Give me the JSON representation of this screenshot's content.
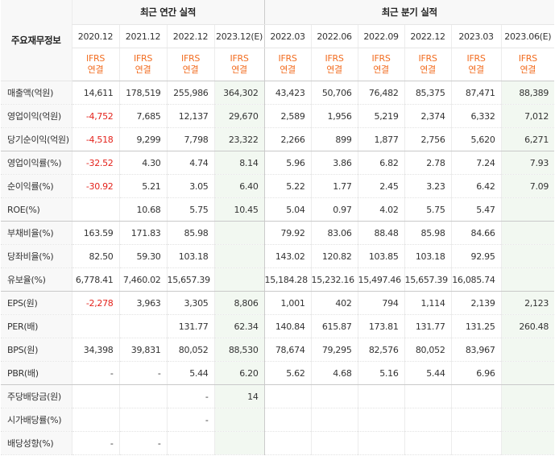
{
  "corner_label": "주요재무정보",
  "groups": {
    "annual": "최근 연간 실적",
    "quarter": "최근 분기 실적"
  },
  "columns": [
    {
      "period": "2020.12",
      "std1": "IFRS",
      "std2": "연결",
      "estimate": false
    },
    {
      "period": "2021.12",
      "std1": "IFRS",
      "std2": "연결",
      "estimate": false
    },
    {
      "period": "2022.12",
      "std1": "IFRS",
      "std2": "연결",
      "estimate": false
    },
    {
      "period": "2023.12(E)",
      "std1": "IFRS",
      "std2": "연결",
      "estimate": true
    },
    {
      "period": "2022.03",
      "std1": "IFRS",
      "std2": "연결",
      "estimate": false
    },
    {
      "period": "2022.06",
      "std1": "IFRS",
      "std2": "연결",
      "estimate": false
    },
    {
      "period": "2022.09",
      "std1": "IFRS",
      "std2": "연결",
      "estimate": false
    },
    {
      "period": "2022.12",
      "std1": "IFRS",
      "std2": "연결",
      "estimate": false
    },
    {
      "period": "2023.03",
      "std1": "IFRS",
      "std2": "연결",
      "estimate": false
    },
    {
      "period": "2023.06(E)",
      "std1": "IFRS",
      "std2": "연결",
      "estimate": true
    }
  ],
  "rows": [
    {
      "label": "매출액(억원)",
      "values": [
        "14,611",
        "178,519",
        "255,986",
        "364,302",
        "43,423",
        "50,706",
        "76,482",
        "85,375",
        "87,471",
        "88,389"
      ]
    },
    {
      "label": "영업이익(억원)",
      "values": [
        "-4,752",
        "7,685",
        "12,137",
        "29,670",
        "2,589",
        "1,956",
        "5,219",
        "2,374",
        "6,332",
        "7,012"
      ]
    },
    {
      "label": "당기순이익(억원)",
      "values": [
        "-4,518",
        "9,299",
        "7,798",
        "23,322",
        "2,266",
        "899",
        "1,877",
        "2,756",
        "5,620",
        "6,271"
      ]
    },
    {
      "label": "영업이익률(%)",
      "values": [
        "-32.52",
        "4.30",
        "4.74",
        "8.14",
        "5.96",
        "3.86",
        "6.82",
        "2.78",
        "7.24",
        "7.93"
      ]
    },
    {
      "label": "순이익률(%)",
      "values": [
        "-30.92",
        "5.21",
        "3.05",
        "6.40",
        "5.22",
        "1.77",
        "2.45",
        "3.23",
        "6.42",
        "7.09"
      ]
    },
    {
      "label": "ROE(%)",
      "values": [
        "",
        "10.68",
        "5.75",
        "10.45",
        "5.04",
        "0.97",
        "4.02",
        "5.75",
        "5.47",
        ""
      ]
    },
    {
      "label": "부채비율(%)",
      "values": [
        "163.59",
        "171.83",
        "85.98",
        "",
        "79.92",
        "83.06",
        "88.48",
        "85.98",
        "84.66",
        ""
      ]
    },
    {
      "label": "당좌비율(%)",
      "values": [
        "82.50",
        "59.30",
        "103.18",
        "",
        "143.02",
        "120.82",
        "103.85",
        "103.18",
        "92.95",
        ""
      ]
    },
    {
      "label": "유보율(%)",
      "values": [
        "6,778.41",
        "7,460.02",
        "15,657.39",
        "",
        "15,184.28",
        "15,232.16",
        "15,497.46",
        "15,657.39",
        "16,085.74",
        ""
      ]
    },
    {
      "label": "EPS(원)",
      "values": [
        "-2,278",
        "3,963",
        "3,305",
        "8,806",
        "1,001",
        "402",
        "794",
        "1,114",
        "2,139",
        "2,123"
      ]
    },
    {
      "label": "PER(배)",
      "values": [
        "",
        "",
        "131.77",
        "62.34",
        "140.84",
        "615.87",
        "173.81",
        "131.77",
        "131.25",
        "260.48"
      ]
    },
    {
      "label": "BPS(원)",
      "values": [
        "34,398",
        "39,831",
        "80,052",
        "88,530",
        "78,674",
        "79,295",
        "82,576",
        "80,052",
        "83,967",
        ""
      ]
    },
    {
      "label": "PBR(배)",
      "values": [
        "-",
        "-",
        "5.44",
        "6.20",
        "5.62",
        "4.68",
        "5.16",
        "5.44",
        "6.96",
        ""
      ]
    },
    {
      "label": "주당배당금(원)",
      "values": [
        "",
        "",
        "-",
        "14",
        "",
        "",
        "",
        "",
        "",
        ""
      ]
    },
    {
      "label": "시가배당률(%)",
      "values": [
        "",
        "",
        "-",
        "",
        "",
        "",
        "",
        "",
        "",
        ""
      ]
    },
    {
      "label": "배당성향(%)",
      "values": [
        "-",
        "-",
        "",
        "",
        "",
        "",
        "",
        "",
        "",
        ""
      ]
    }
  ],
  "colors": {
    "negative": "#e4231c",
    "standard": "#f26d21",
    "estimate_bg": "#f2f8f1",
    "header_bg": "#f8f8f8"
  }
}
